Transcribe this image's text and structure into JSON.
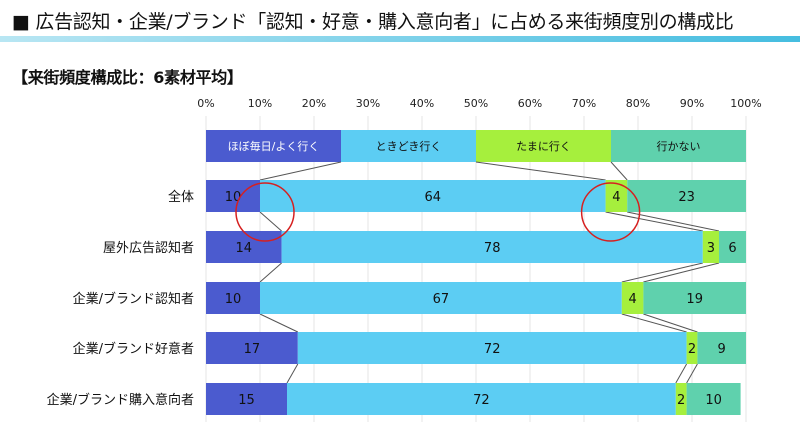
{
  "page": {
    "title": "■ 広告認知・企業/ブランド「認知・好意・購入意向者」に占める来街頻度別の構成比",
    "subtitle": "【来街頻度構成比：6素材平均】"
  },
  "chart_data": {
    "type": "bar",
    "orientation": "horizontal",
    "stacked": "percent",
    "title": "【来街頻度構成比：6素材平均】",
    "xlim": [
      0,
      100
    ],
    "x_ticks": [
      "0%",
      "10%",
      "20%",
      "30%",
      "40%",
      "50%",
      "60%",
      "70%",
      "80%",
      "90%",
      "100%"
    ],
    "categories": [
      "全体",
      "屋外広告認知者",
      "企業/ブランド認知者",
      "企業/ブランド好意者",
      "企業/ブランド購入意向者"
    ],
    "series": [
      {
        "name": "ほぼ毎日/よく行く",
        "color": "#4b5bcf",
        "values": [
          10,
          14,
          10,
          17,
          15
        ]
      },
      {
        "name": "ときどき行く",
        "color": "#5ccdf3",
        "values": [
          64,
          78,
          67,
          72,
          72
        ]
      },
      {
        "name": "たまに行く",
        "color": "#a6ef3d",
        "values": [
          4,
          3,
          4,
          2,
          2
        ]
      },
      {
        "name": "行かない",
        "color": "#5fd1ad",
        "values": [
          23,
          6,
          19,
          9,
          10
        ]
      }
    ],
    "legend_position": "top-inside",
    "connector_lines": true,
    "annotations": [
      {
        "shape": "circle",
        "color": "#d62020",
        "category": "全体",
        "boundary_after_series": 0
      },
      {
        "shape": "circle",
        "color": "#d62020",
        "category": "全体",
        "boundary_after_series": 1
      }
    ]
  }
}
